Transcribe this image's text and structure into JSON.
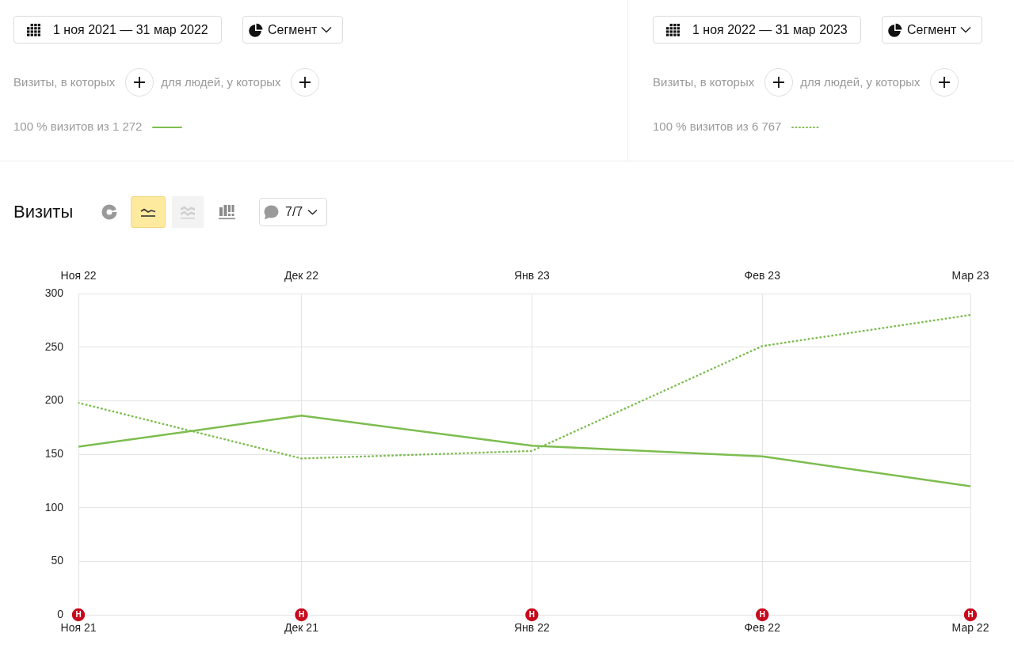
{
  "chart_data": {
    "type": "line",
    "title": "Визиты",
    "annotations": [
      "1 ноя 2021 — 31 мар 2022",
      "Сегмент",
      "Визиты, в которых",
      "для людей, у которых",
      "1 ноя 2022 — 31 мар 2023",
      "Сегмент",
      "Визиты, в которых",
      "для людей, у которых",
      "7/7",
      "Н",
      "Н",
      "Н",
      "Н",
      "Н"
    ],
    "xlim": [
      "2021-11",
      "2022-03"
    ],
    "xticks": [
      {
        "value": "2021-11",
        "label": "Ноя 21"
      },
      {
        "value": "2021-12",
        "label": "Дек 21"
      },
      {
        "value": "2022-01",
        "label": "Янв 22"
      },
      {
        "value": "2022-02",
        "label": "Фев 22"
      },
      {
        "value": "2022-03",
        "label": "Мар 22"
      }
    ],
    "x2lim": [
      "2022-11",
      "2023-03"
    ],
    "x2ticks": [
      {
        "value": "2022-11",
        "label": "Ноя 22"
      },
      {
        "value": "2022-12",
        "label": "Дек 22"
      },
      {
        "value": "2023-01",
        "label": "Янв 23"
      },
      {
        "value": "2023-02",
        "label": "Фев 23"
      },
      {
        "value": "2023-03",
        "label": "Мар 23"
      }
    ],
    "ylim": [
      0,
      300
    ],
    "yticks": [
      0,
      50,
      100,
      150,
      200,
      250,
      300
    ],
    "series": [
      {
        "name": "100 % визитов из 1 272",
        "color": "#7dbd4f",
        "line_style": "solid",
        "x": [
          "2021-11",
          "2021-12",
          "2022-01",
          "2022-02",
          "2022-03"
        ],
        "values": [
          157,
          186,
          158,
          148,
          120
        ]
      },
      {
        "name": "100 % визитов из 6 767",
        "color": "#7dbd4f",
        "line_style": "dotted",
        "axis": "x2",
        "x": [
          "2022-11",
          "2022-12",
          "2023-01",
          "2023-02",
          "2023-03"
        ],
        "values": [
          198,
          146,
          153,
          251,
          280
        ]
      }
    ],
    "grid": true,
    "legend": "top",
    "marker": "none"
  }
}
